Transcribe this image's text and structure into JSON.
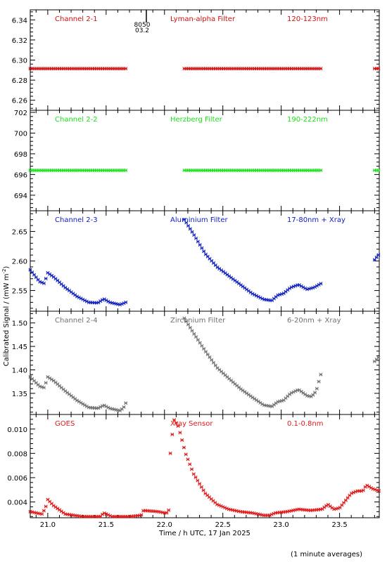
{
  "figure": {
    "ylabel": "Calibrated Signal / (mW m",
    "ylabel_sup": "-2",
    "ylabel_end": ")",
    "xlabel": "Time / h UTC, 17 Jan 2025",
    "footer": "(1 minute averages)",
    "marker_labels": [
      "8050",
      "03.2"
    ]
  },
  "chart_data": [
    {
      "type": "scatter",
      "panel": "1",
      "color": "#d01010",
      "header": {
        "left": "Channel 2-1",
        "center": "Lyman-alpha Filter",
        "right": "120-123nm"
      },
      "ylim": [
        6.25,
        6.35
      ],
      "yticks": [
        6.26,
        6.28,
        6.3,
        6.32,
        6.34
      ],
      "ytick_labels": [
        "6.26",
        "6.28",
        "6.30",
        "6.32",
        "6.34"
      ],
      "segments": [
        {
          "t0": 20.85,
          "t1": 21.68,
          "dt": 0.0167,
          "gen": "flat",
          "v": 6.2915
        },
        {
          "t0": 22.17,
          "t1": 23.35,
          "dt": 0.0167,
          "gen": "flat",
          "v": 6.2915
        },
        {
          "t0": 23.8,
          "t1": 23.84,
          "dt": 0.0167,
          "gen": "flat",
          "v": 6.2915
        }
      ]
    },
    {
      "type": "scatter",
      "panel": "2",
      "color": "#18e018",
      "header": {
        "left": "Channel 2-2",
        "center": "Herzberg Filter",
        "right": "190-222nm"
      },
      "ylim": [
        692.5,
        702.2
      ],
      "yticks": [
        694,
        696,
        698,
        700,
        702
      ],
      "ytick_labels": [
        "694",
        "696",
        "698",
        "700",
        "702"
      ],
      "segments": [
        {
          "t0": 20.85,
          "t1": 21.68,
          "dt": 0.0167,
          "gen": "flat",
          "v": 696.4
        },
        {
          "t0": 22.17,
          "t1": 23.35,
          "dt": 0.0167,
          "gen": "flat",
          "v": 696.4
        },
        {
          "t0": 23.8,
          "t1": 23.84,
          "dt": 0.0167,
          "gen": "flat",
          "v": 696.4
        }
      ]
    },
    {
      "type": "scatter",
      "panel": "3",
      "color": "#1020c0",
      "header": {
        "left": "Channel 2-3",
        "center": "Aluminium Filter",
        "right": "17-80nm + Xray"
      },
      "ylim": [
        2.515,
        2.685
      ],
      "yticks": [
        2.55,
        2.6,
        2.65
      ],
      "ytick_labels": [
        "2.55",
        "2.60",
        "2.65"
      ],
      "segments": [
        {
          "t0": 20.85,
          "t1": 21.68,
          "dt": 0.0167,
          "gen": "interp",
          "pts": [
            [
              20.85,
              2.585
            ],
            [
              20.93,
              2.565
            ],
            [
              20.97,
              2.562
            ],
            [
              21.0,
              2.58
            ],
            [
              21.05,
              2.573
            ],
            [
              21.15,
              2.555
            ],
            [
              21.25,
              2.54
            ],
            [
              21.35,
              2.53
            ],
            [
              21.43,
              2.529
            ],
            [
              21.48,
              2.536
            ],
            [
              21.53,
              2.53
            ],
            [
              21.62,
              2.526
            ],
            [
              21.68,
              2.531
            ]
          ]
        },
        {
          "t0": 22.17,
          "t1": 23.35,
          "dt": 0.0167,
          "gen": "interp",
          "pts": [
            [
              22.17,
              2.67
            ],
            [
              22.25,
              2.645
            ],
            [
              22.35,
              2.612
            ],
            [
              22.45,
              2.59
            ],
            [
              22.55,
              2.575
            ],
            [
              22.65,
              2.56
            ],
            [
              22.75,
              2.545
            ],
            [
              22.85,
              2.535
            ],
            [
              22.92,
              2.533
            ],
            [
              22.97,
              2.542
            ],
            [
              23.02,
              2.545
            ],
            [
              23.08,
              2.555
            ],
            [
              23.15,
              2.56
            ],
            [
              23.22,
              2.552
            ],
            [
              23.28,
              2.555
            ],
            [
              23.35,
              2.563
            ]
          ]
        },
        {
          "t0": 23.8,
          "t1": 23.84,
          "dt": 0.0167,
          "gen": "interp",
          "pts": [
            [
              23.8,
              2.602
            ],
            [
              23.84,
              2.612
            ]
          ]
        }
      ]
    },
    {
      "type": "scatter",
      "panel": "4",
      "color": "#707070",
      "header": {
        "left": "Channel 2-4",
        "center": "Zirconium Filter",
        "right": "6-20nm + Xray"
      },
      "ylim": [
        1.305,
        1.525
      ],
      "yticks": [
        1.35,
        1.4,
        1.45,
        1.5
      ],
      "ytick_labels": [
        "1.35",
        "1.40",
        "1.45",
        "1.50"
      ],
      "segments": [
        {
          "t0": 20.85,
          "t1": 21.68,
          "dt": 0.0167,
          "gen": "interp",
          "pts": [
            [
              20.85,
              1.385
            ],
            [
              20.93,
              1.365
            ],
            [
              20.97,
              1.362
            ],
            [
              21.0,
              1.385
            ],
            [
              21.05,
              1.377
            ],
            [
              21.15,
              1.355
            ],
            [
              21.25,
              1.335
            ],
            [
              21.35,
              1.32
            ],
            [
              21.43,
              1.318
            ],
            [
              21.48,
              1.325
            ],
            [
              21.53,
              1.318
            ],
            [
              21.62,
              1.313
            ],
            [
              21.65,
              1.32
            ],
            [
              21.68,
              1.335
            ]
          ]
        },
        {
          "t0": 22.17,
          "t1": 23.35,
          "dt": 0.0167,
          "gen": "interp",
          "pts": [
            [
              22.17,
              1.51
            ],
            [
              22.25,
              1.478
            ],
            [
              22.35,
              1.44
            ],
            [
              22.45,
              1.405
            ],
            [
              22.55,
              1.382
            ],
            [
              22.65,
              1.36
            ],
            [
              22.75,
              1.342
            ],
            [
              22.85,
              1.325
            ],
            [
              22.92,
              1.322
            ],
            [
              22.97,
              1.332
            ],
            [
              23.02,
              1.335
            ],
            [
              23.08,
              1.35
            ],
            [
              23.15,
              1.358
            ],
            [
              23.22,
              1.345
            ],
            [
              23.26,
              1.343
            ],
            [
              23.3,
              1.355
            ],
            [
              23.35,
              1.4
            ]
          ]
        },
        {
          "t0": 23.8,
          "t1": 23.84,
          "dt": 0.0167,
          "gen": "interp",
          "pts": [
            [
              23.8,
              1.418
            ],
            [
              23.84,
              1.428
            ]
          ]
        }
      ]
    },
    {
      "type": "scatter",
      "panel": "5",
      "color": "#e01818",
      "header": {
        "left": "GOES",
        "center": "Xray Sensor",
        "right": "0.1-0.8nm"
      },
      "ylim": [
        0.0027,
        0.0112
      ],
      "yticks": [
        0.004,
        0.006,
        0.008,
        0.01
      ],
      "ytick_labels": [
        "0.004",
        "0.006",
        "0.008",
        "0.010"
      ],
      "segments": [
        {
          "t0": 20.85,
          "t1": 22.04,
          "dt": 0.0167,
          "gen": "interp",
          "pts": [
            [
              20.85,
              0.0032
            ],
            [
              20.95,
              0.003
            ],
            [
              20.98,
              0.0035
            ],
            [
              21.0,
              0.0042
            ],
            [
              21.05,
              0.0037
            ],
            [
              21.15,
              0.003
            ],
            [
              21.3,
              0.0028
            ],
            [
              21.45,
              0.0028
            ],
            [
              21.48,
              0.0031
            ],
            [
              21.55,
              0.0028
            ],
            [
              21.7,
              0.0028
            ],
            [
              21.8,
              0.0029
            ],
            [
              21.82,
              0.0033
            ],
            [
              21.95,
              0.0032
            ],
            [
              22.0,
              0.0031
            ],
            [
              22.03,
              0.0031
            ],
            [
              22.04,
              0.0035
            ]
          ]
        },
        {
          "t0": 22.05,
          "t1": 23.84,
          "dt": 0.0167,
          "gen": "interp",
          "pts": [
            [
              22.05,
              0.008
            ],
            [
              22.08,
              0.0108
            ],
            [
              22.12,
              0.0102
            ],
            [
              22.18,
              0.008
            ],
            [
              22.25,
              0.0063
            ],
            [
              22.35,
              0.0047
            ],
            [
              22.45,
              0.0038
            ],
            [
              22.55,
              0.0034
            ],
            [
              22.65,
              0.0032
            ],
            [
              22.75,
              0.0031
            ],
            [
              22.85,
              0.0029
            ],
            [
              22.9,
              0.0029
            ],
            [
              22.95,
              0.0031
            ],
            [
              23.05,
              0.0032
            ],
            [
              23.15,
              0.0034
            ],
            [
              23.25,
              0.0033
            ],
            [
              23.35,
              0.0034
            ],
            [
              23.4,
              0.0038
            ],
            [
              23.45,
              0.0034
            ],
            [
              23.5,
              0.0035
            ],
            [
              23.55,
              0.0041
            ],
            [
              23.6,
              0.0047
            ],
            [
              23.65,
              0.0049
            ],
            [
              23.7,
              0.0049
            ],
            [
              23.73,
              0.0054
            ],
            [
              23.78,
              0.0051
            ],
            [
              23.84,
              0.0049
            ]
          ]
        }
      ]
    }
  ],
  "xaxis": {
    "xlim": [
      20.85,
      23.84
    ],
    "ticks": [
      21.0,
      21.5,
      22.0,
      22.5,
      23.0,
      23.5
    ],
    "tick_labels": [
      "21.0",
      "21.5",
      "22.0",
      "22.5",
      "23.0",
      "23.5"
    ],
    "minor_step": 0.1
  }
}
